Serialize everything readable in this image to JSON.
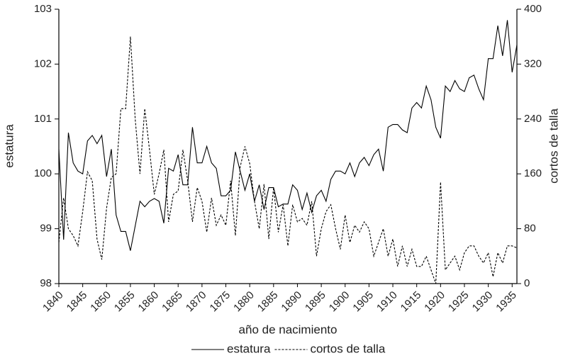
{
  "chart_data": {
    "type": "line",
    "x_label": "año de nacimiento",
    "y_label": "estatura",
    "y2_label": "cortos de talla",
    "x": [
      1840,
      1841,
      1842,
      1843,
      1844,
      1845,
      1846,
      1847,
      1848,
      1849,
      1850,
      1851,
      1852,
      1853,
      1854,
      1855,
      1856,
      1857,
      1858,
      1859,
      1860,
      1861,
      1862,
      1863,
      1864,
      1865,
      1866,
      1867,
      1868,
      1869,
      1870,
      1871,
      1872,
      1873,
      1874,
      1875,
      1876,
      1877,
      1878,
      1879,
      1880,
      1881,
      1882,
      1883,
      1884,
      1885,
      1886,
      1887,
      1888,
      1889,
      1890,
      1891,
      1892,
      1893,
      1894,
      1895,
      1896,
      1897,
      1898,
      1899,
      1900,
      1901,
      1902,
      1903,
      1904,
      1905,
      1906,
      1907,
      1908,
      1909,
      1910,
      1911,
      1912,
      1913,
      1914,
      1915,
      1916,
      1917,
      1918,
      1919,
      1920,
      1921,
      1922,
      1923,
      1924,
      1925,
      1926,
      1927,
      1928,
      1929,
      1930,
      1931,
      1932,
      1933,
      1934,
      1935,
      1936
    ],
    "xlim": [
      1840,
      1936
    ],
    "xticks": [
      1840,
      1845,
      1850,
      1855,
      1860,
      1865,
      1870,
      1875,
      1880,
      1885,
      1890,
      1895,
      1900,
      1905,
      1910,
      1915,
      1920,
      1925,
      1930,
      1935
    ],
    "ylim": [
      98,
      103
    ],
    "yticks": [
      98,
      99,
      100,
      101,
      102,
      103
    ],
    "y2lim": [
      0,
      400
    ],
    "y2ticks": [
      0,
      80,
      160,
      240,
      320,
      400
    ],
    "series": [
      {
        "name": "estatura",
        "color": "#000000",
        "dash": false,
        "values": [
          100.45,
          98.8,
          100.75,
          100.2,
          100.05,
          100.0,
          100.6,
          100.7,
          100.55,
          100.7,
          99.95,
          100.45,
          99.25,
          98.95,
          98.95,
          98.6,
          99.05,
          99.5,
          99.4,
          99.5,
          99.55,
          99.5,
          99.1,
          100.1,
          100.05,
          100.35,
          99.8,
          99.8,
          100.85,
          100.2,
          100.2,
          100.5,
          100.2,
          100.1,
          99.6,
          99.6,
          99.7,
          100.4,
          100.05,
          99.7,
          100.0,
          99.5,
          99.8,
          99.35,
          99.75,
          99.75,
          99.4,
          99.45,
          99.45,
          99.8,
          99.7,
          99.35,
          99.65,
          99.3,
          99.6,
          99.7,
          99.5,
          99.9,
          100.05,
          100.05,
          100.0,
          100.2,
          99.95,
          100.2,
          100.3,
          100.15,
          100.35,
          100.45,
          100.05,
          100.85,
          100.9,
          100.9,
          100.8,
          100.75,
          101.2,
          101.3,
          101.2,
          101.6,
          101.35,
          100.85,
          100.65,
          101.6,
          101.5,
          101.7,
          101.55,
          101.5,
          101.75,
          101.8,
          101.55,
          101.35,
          102.1,
          102.1,
          102.7,
          102.15,
          102.8,
          101.85,
          102.35
        ]
      },
      {
        "name": "cortos de talla",
        "color": "#000000",
        "dash": true,
        "axis": "y2",
        "values": [
          60,
          125,
          80,
          70,
          55,
          105,
          163,
          150,
          65,
          35,
          110,
          155,
          160,
          255,
          255,
          360,
          240,
          160,
          255,
          195,
          130,
          160,
          195,
          90,
          130,
          135,
          195,
          150,
          90,
          140,
          120,
          75,
          125,
          85,
          100,
          85,
          150,
          70,
          170,
          200,
          175,
          120,
          80,
          145,
          65,
          140,
          75,
          115,
          55,
          115,
          90,
          95,
          85,
          120,
          40,
          80,
          105,
          115,
          80,
          50,
          100,
          60,
          85,
          75,
          90,
          80,
          40,
          60,
          80,
          40,
          65,
          25,
          55,
          25,
          50,
          25,
          25,
          40,
          20,
          0,
          148,
          20,
          30,
          40,
          20,
          45,
          55,
          55,
          40,
          30,
          45,
          10,
          45,
          30,
          55,
          55,
          52
        ]
      }
    ]
  }
}
